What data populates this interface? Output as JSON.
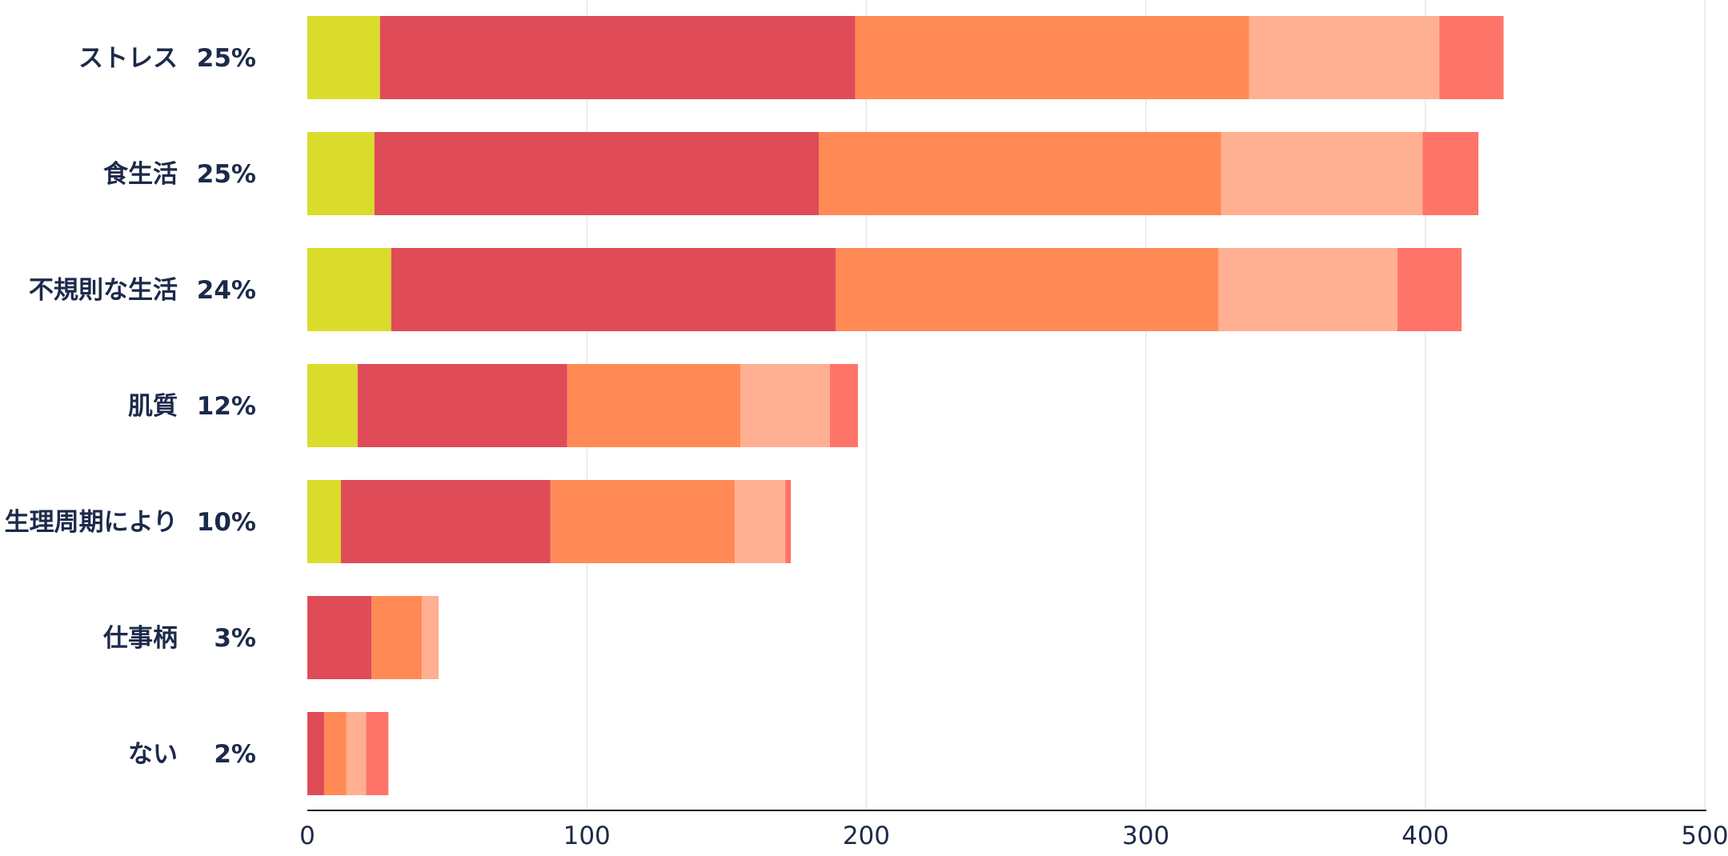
{
  "chart_data": {
    "type": "bar",
    "orientation": "horizontal",
    "stacked": true,
    "title": "",
    "xlabel": "",
    "ylabel": "",
    "categories": [
      "ストレス",
      "食生活",
      "不規則な生活",
      "肌質",
      "生理周期により",
      "仕事柄",
      "ない"
    ],
    "percent_labels": [
      "25%",
      "25%",
      "24%",
      "12%",
      "10%",
      "3%",
      "2%"
    ],
    "series": [
      {
        "color": "#d9dc2a",
        "values": [
          26,
          24,
          30,
          18,
          12,
          0,
          0
        ]
      },
      {
        "color": "#e04b58",
        "values": [
          170,
          159,
          159,
          75,
          75,
          23,
          6
        ]
      },
      {
        "color": "#ff8a56",
        "values": [
          141,
          144,
          137,
          62,
          66,
          18,
          8
        ]
      },
      {
        "color": "#ffb092",
        "values": [
          68,
          72,
          64,
          32,
          18,
          6,
          7
        ]
      },
      {
        "color": "#ff7468",
        "values": [
          23,
          20,
          23,
          10,
          2,
          0,
          8
        ]
      }
    ],
    "x_ticks": [
      "0",
      "100",
      "200",
      "300",
      "400",
      "500"
    ],
    "xlim": [
      0,
      500
    ],
    "grid": "vertical",
    "legend": "none"
  }
}
